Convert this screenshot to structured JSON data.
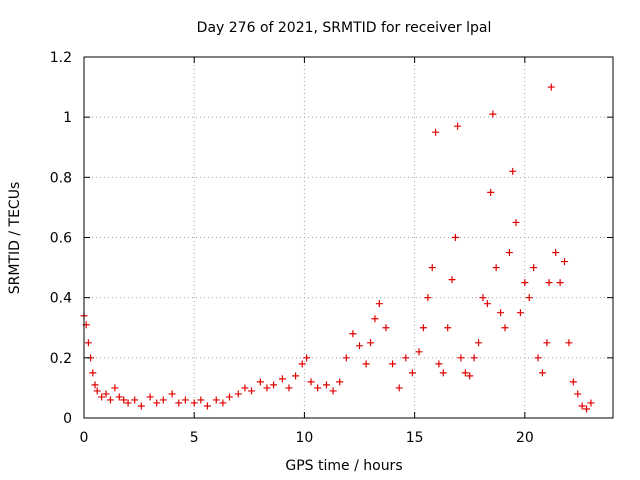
{
  "chart_data": {
    "type": "scatter",
    "title": "Day 276 of 2021, SRMTID for receiver lpal",
    "xlabel": "GPS time / hours",
    "ylabel": "SRMTID / TECUs",
    "xlim": [
      0,
      24
    ],
    "ylim": [
      0,
      1.2
    ],
    "xticks": [
      0,
      5,
      10,
      15,
      20
    ],
    "yticks": [
      0,
      0.2,
      0.4,
      0.6,
      0.8,
      1,
      1.2
    ],
    "xtick_labels": [
      "0",
      "5",
      "10",
      "15",
      "20"
    ],
    "ytick_labels": [
      "0",
      "0.2",
      "0.4",
      "0.6",
      "0.8",
      "1",
      "1.2"
    ],
    "grid": true,
    "marker": "+",
    "color": "#e00000",
    "series": [
      {
        "name": "SRMTID",
        "x": [
          0.0,
          0.1,
          0.2,
          0.3,
          0.4,
          0.5,
          0.6,
          0.8,
          1.0,
          1.2,
          1.4,
          1.6,
          1.8,
          2.0,
          2.3,
          2.6,
          3.0,
          3.3,
          3.6,
          4.0,
          4.3,
          4.6,
          5.0,
          5.3,
          5.6,
          6.0,
          6.3,
          6.6,
          7.0,
          7.3,
          7.6,
          8.0,
          8.3,
          8.6,
          9.0,
          9.3,
          9.6,
          9.9,
          10.1,
          10.3,
          10.6,
          11.0,
          11.3,
          11.6,
          11.9,
          12.2,
          12.5,
          12.8,
          13.0,
          13.2,
          13.4,
          13.7,
          14.0,
          14.3,
          14.6,
          14.9,
          15.2,
          15.4,
          15.6,
          15.8,
          15.95,
          16.1,
          16.3,
          16.5,
          16.7,
          16.85,
          16.95,
          17.1,
          17.3,
          17.5,
          17.7,
          17.9,
          18.1,
          18.3,
          18.45,
          18.55,
          18.7,
          18.9,
          19.1,
          19.3,
          19.45,
          19.6,
          19.8,
          20.0,
          20.2,
          20.4,
          20.6,
          20.8,
          21.0,
          21.1,
          21.2,
          21.4,
          21.6,
          21.8,
          22.0,
          22.2,
          22.4,
          22.6,
          22.8,
          23.0
        ],
        "y": [
          0.34,
          0.31,
          0.25,
          0.2,
          0.15,
          0.11,
          0.09,
          0.07,
          0.08,
          0.06,
          0.1,
          0.07,
          0.06,
          0.05,
          0.06,
          0.04,
          0.07,
          0.05,
          0.06,
          0.08,
          0.05,
          0.06,
          0.05,
          0.06,
          0.04,
          0.06,
          0.05,
          0.07,
          0.08,
          0.1,
          0.09,
          0.12,
          0.1,
          0.11,
          0.13,
          0.1,
          0.14,
          0.18,
          0.2,
          0.12,
          0.1,
          0.11,
          0.09,
          0.12,
          0.2,
          0.28,
          0.24,
          0.18,
          0.25,
          0.33,
          0.38,
          0.3,
          0.18,
          0.1,
          0.2,
          0.15,
          0.22,
          0.3,
          0.4,
          0.5,
          0.95,
          0.18,
          0.15,
          0.3,
          0.46,
          0.6,
          0.97,
          0.2,
          0.15,
          0.14,
          0.2,
          0.25,
          0.4,
          0.38,
          0.75,
          1.01,
          0.5,
          0.35,
          0.3,
          0.55,
          0.82,
          0.65,
          0.35,
          0.45,
          0.4,
          0.5,
          0.2,
          0.15,
          0.25,
          0.45,
          1.1,
          0.55,
          0.45,
          0.52,
          0.25,
          0.12,
          0.08,
          0.04,
          0.03,
          0.05
        ]
      }
    ]
  }
}
